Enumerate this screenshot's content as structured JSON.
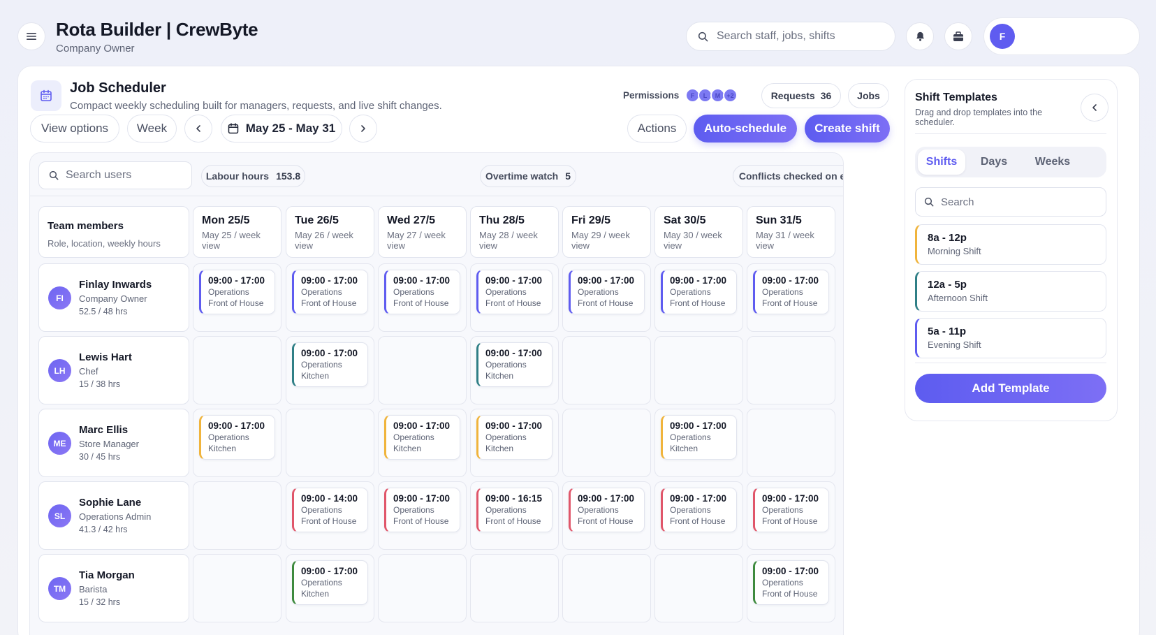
{
  "header": {
    "title": "Rota Builder | CrewByte",
    "subtitle": "Company Owner",
    "search_placeholder": "Search staff, jobs, shifts",
    "profile_initial": "F"
  },
  "scheduler": {
    "title": "Job Scheduler",
    "subtitle": "Compact weekly scheduling built for managers, requests, and live shift changes.",
    "permissions_label": "Permissions",
    "permission_avatars": [
      "F",
      "L",
      "M",
      "+2"
    ],
    "requests_label": "Requests",
    "requests_count": "36",
    "jobs_label": "Jobs",
    "view_options_label": "View options",
    "week_label": "Week",
    "date_range": "May 25 - May 31",
    "actions_label": "Actions",
    "auto_schedule_label": "Auto-schedule",
    "create_shift_label": "Create shift"
  },
  "filters": {
    "search_users_placeholder": "Search users",
    "labour_hours_label": "Labour hours",
    "labour_hours_value": "153.8",
    "overtime_label": "Overtime watch",
    "overtime_value": "5",
    "conflicts_label": "Conflicts checked on every save"
  },
  "team_header": {
    "title": "Team members",
    "subtitle": "Role, location, weekly hours"
  },
  "days": [
    {
      "label": "Mon 25/5",
      "sub": "May 25 / week view"
    },
    {
      "label": "Tue 26/5",
      "sub": "May 26 / week view"
    },
    {
      "label": "Wed 27/5",
      "sub": "May 27 / week view"
    },
    {
      "label": "Thu 28/5",
      "sub": "May 28 / week view"
    },
    {
      "label": "Fri 29/5",
      "sub": "May 29 / week view"
    },
    {
      "label": "Sat 30/5",
      "sub": "May 30 / week view"
    },
    {
      "label": "Sun 31/5",
      "sub": "May 31 / week view"
    }
  ],
  "members": [
    {
      "initials": "FI",
      "name": "Finlay Inwards",
      "role": "Company Owner",
      "hours": "52.5 / 48 hrs",
      "color": "#5f5cf0",
      "shifts": [
        {
          "time": "09:00 - 17:00",
          "dept": "Operations",
          "area": "Front of House"
        },
        {
          "time": "09:00 - 17:00",
          "dept": "Operations",
          "area": "Front of House"
        },
        {
          "time": "09:00 - 17:00",
          "dept": "Operations",
          "area": "Front of House"
        },
        {
          "time": "09:00 - 17:00",
          "dept": "Operations",
          "area": "Front of House"
        },
        {
          "time": "09:00 - 17:00",
          "dept": "Operations",
          "area": "Front of House"
        },
        {
          "time": "09:00 - 17:00",
          "dept": "Operations",
          "area": "Front of House"
        },
        {
          "time": "09:00 - 17:00",
          "dept": "Operations",
          "area": "Front of House"
        }
      ]
    },
    {
      "initials": "LH",
      "name": "Lewis Hart",
      "role": "Chef",
      "hours": "15 / 38 hrs",
      "color": "#2f7f86",
      "shifts": [
        null,
        {
          "time": "09:00 - 17:00",
          "dept": "Operations",
          "area": "Kitchen"
        },
        null,
        {
          "time": "09:00 - 17:00",
          "dept": "Operations",
          "area": "Kitchen"
        },
        null,
        null,
        null
      ]
    },
    {
      "initials": "ME",
      "name": "Marc Ellis",
      "role": "Store Manager",
      "hours": "30 / 45 hrs",
      "color": "#f0b43c",
      "shifts": [
        {
          "time": "09:00 - 17:00",
          "dept": "Operations",
          "area": "Kitchen"
        },
        null,
        {
          "time": "09:00 - 17:00",
          "dept": "Operations",
          "area": "Kitchen"
        },
        {
          "time": "09:00 - 17:00",
          "dept": "Operations",
          "area": "Kitchen"
        },
        null,
        {
          "time": "09:00 - 17:00",
          "dept": "Operations",
          "area": "Kitchen"
        },
        null
      ]
    },
    {
      "initials": "SL",
      "name": "Sophie Lane",
      "role": "Operations Admin",
      "hours": "41.3 / 42 hrs",
      "color": "#e0566a",
      "shifts": [
        null,
        {
          "time": "09:00 - 14:00",
          "dept": "Operations",
          "area": "Front of House"
        },
        {
          "time": "09:00 - 17:00",
          "dept": "Operations",
          "area": "Front of House"
        },
        {
          "time": "09:00 - 16:15",
          "dept": "Operations",
          "area": "Front of House"
        },
        {
          "time": "09:00 - 17:00",
          "dept": "Operations",
          "area": "Front of House"
        },
        {
          "time": "09:00 - 17:00",
          "dept": "Operations",
          "area": "Front of House"
        },
        {
          "time": "09:00 - 17:00",
          "dept": "Operations",
          "area": "Front of House"
        }
      ]
    },
    {
      "initials": "TM",
      "name": "Tia Morgan",
      "role": "Barista",
      "hours": "15 / 32 hrs",
      "color": "#3e8a3e",
      "shifts": [
        null,
        {
          "time": "09:00 - 17:00",
          "dept": "Operations",
          "area": "Kitchen"
        },
        null,
        null,
        null,
        null,
        {
          "time": "09:00 - 17:00",
          "dept": "Operations",
          "area": "Front of House"
        }
      ]
    }
  ],
  "templates": {
    "title": "Shift Templates",
    "subtitle": "Drag and drop templates into the scheduler.",
    "tabs": [
      "Shifts",
      "Days",
      "Weeks"
    ],
    "search_placeholder": "Search",
    "items": [
      {
        "time": "8a - 12p",
        "name": "Morning Shift",
        "color": "#f0b43c"
      },
      {
        "time": "12a - 5p",
        "name": "Afternoon Shift",
        "color": "#2f7f86"
      },
      {
        "time": "5a - 11p",
        "name": "Evening Shift",
        "color": "#5f5cf0"
      }
    ],
    "add_label": "Add Template"
  },
  "icons": {
    "menu": "menu-icon",
    "search": "search-icon",
    "bell": "bell-icon",
    "briefcase": "briefcase-icon",
    "calendar": "calendar-icon",
    "chevron_left": "chevron-left-icon",
    "chevron_right": "chevron-right-icon"
  },
  "colors": {
    "accent": "#5f5cf0",
    "accent_gradient_end": "#7d6ff5"
  }
}
